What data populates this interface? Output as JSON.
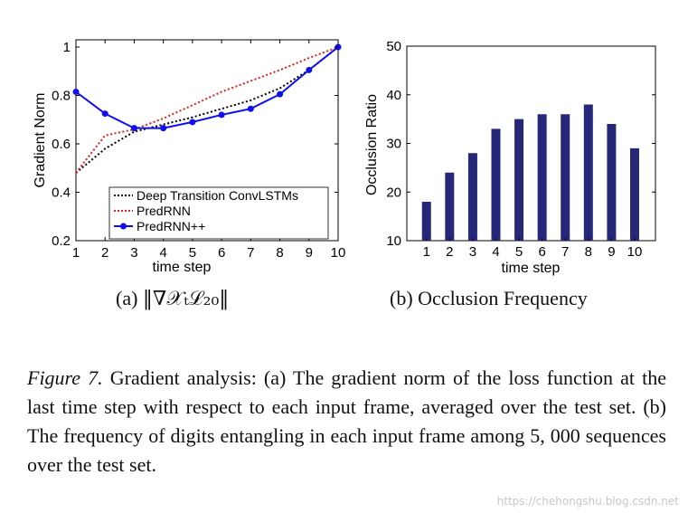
{
  "chart_data": [
    {
      "type": "line",
      "x": [
        1,
        2,
        3,
        4,
        5,
        6,
        7,
        8,
        9,
        10
      ],
      "series": [
        {
          "name": "Deep Transition ConvLSTMs",
          "values": [
            0.48,
            0.58,
            0.65,
            0.68,
            0.71,
            0.745,
            0.78,
            0.83,
            0.905,
            1.0
          ],
          "color": "#000000",
          "style": "dotted"
        },
        {
          "name": "PredRNN",
          "values": [
            0.48,
            0.635,
            0.66,
            0.705,
            0.76,
            0.815,
            0.86,
            0.905,
            0.955,
            1.0
          ],
          "color": "#e02020",
          "style": "dotted"
        },
        {
          "name": "PredRNN++",
          "values": [
            0.815,
            0.725,
            0.665,
            0.665,
            0.69,
            0.72,
            0.745,
            0.805,
            0.905,
            1.0
          ],
          "color": "#1010ee",
          "style": "solid-marker"
        }
      ],
      "xlabel": "time step",
      "ylabel": "Gradient Norm",
      "xlim": [
        1,
        10
      ],
      "ylim": [
        0.2,
        1.03
      ],
      "xticks": [
        "1",
        "2",
        "3",
        "4",
        "5",
        "6",
        "7",
        "8",
        "9",
        "10"
      ],
      "yticks": [
        "0.2",
        "0.4",
        "0.6",
        "0.8",
        "1"
      ],
      "legend": "bottom-right"
    },
    {
      "type": "bar",
      "categories": [
        "1",
        "2",
        "3",
        "4",
        "5",
        "6",
        "7",
        "8",
        "9",
        "10"
      ],
      "values": [
        18,
        24,
        28,
        33,
        35,
        36,
        36,
        38,
        34,
        29
      ],
      "color": "#27277a",
      "xlabel": "time step",
      "ylabel": "Occlusion Ratio",
      "ylim": [
        10,
        50
      ],
      "yticks": [
        "10",
        "20",
        "30",
        "40",
        "50"
      ]
    }
  ],
  "subcaptions": {
    "a_label": "(a)",
    "a_math": "‖∇𝒳ₜℒ₂₀‖",
    "b_label": "(b)",
    "b_text": "Occlusion Frequency"
  },
  "caption": {
    "label": "Figure 7.",
    "text": " Gradient analysis: (a) The gradient norm of the loss function at the last time step with respect to each input frame, averaged over the test set. (b) The frequency of digits entangling in each input frame among 5, 000 sequences over the test set."
  },
  "watermark": "https://chehongshu.blog.csdn.net"
}
